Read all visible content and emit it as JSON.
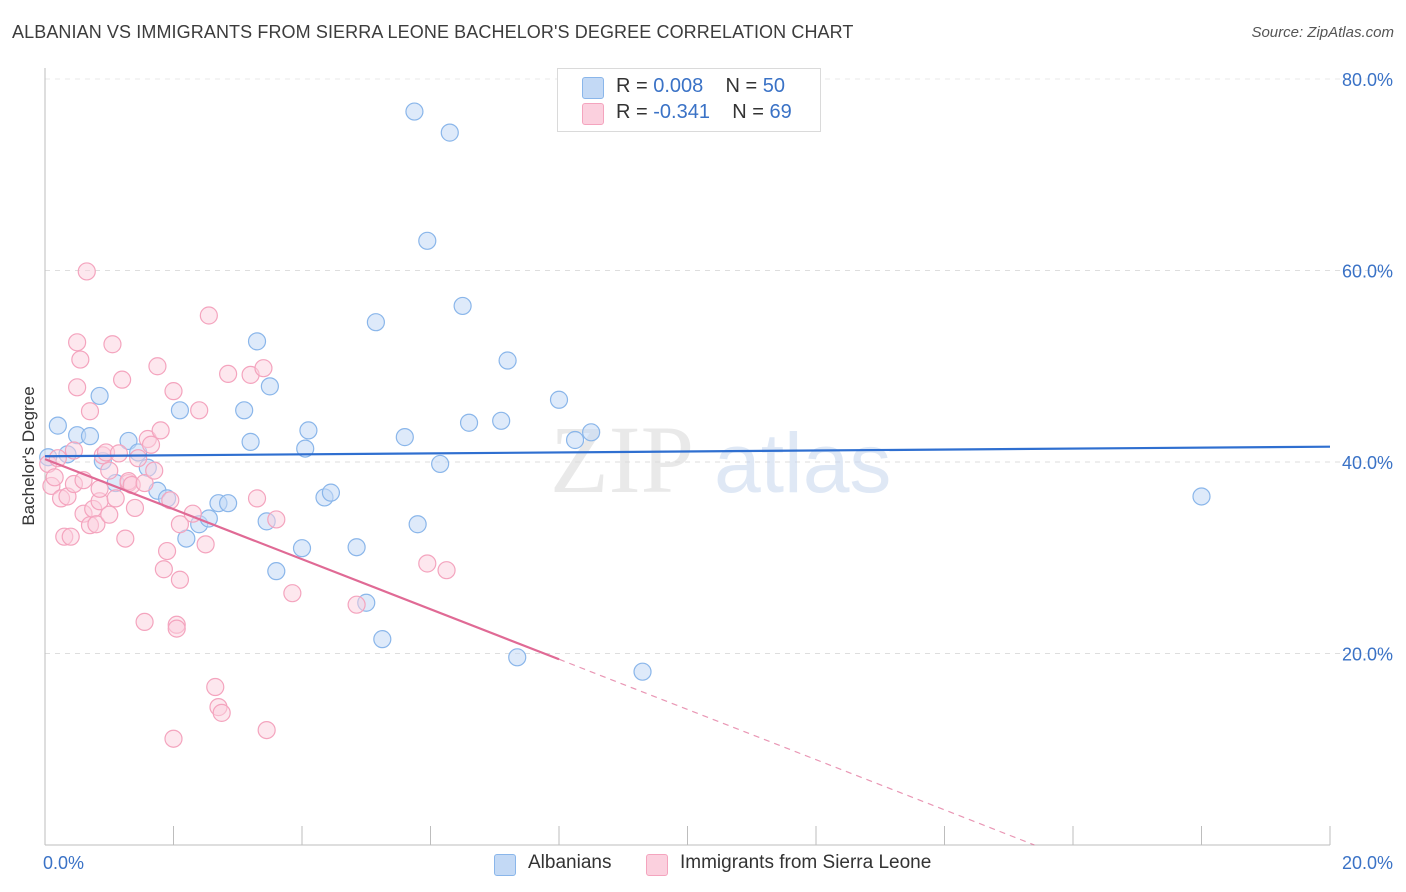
{
  "title": "ALBANIAN VS IMMIGRANTS FROM SIERRA LEONE BACHELOR'S DEGREE CORRELATION CHART",
  "source": "Source: ZipAtlas.com",
  "watermark": {
    "zip": "ZIP",
    "atlas": "atlas"
  },
  "legend": {
    "r_label": "R =",
    "n_label": "N =",
    "rows": [
      {
        "r": "0.008",
        "n": "50"
      },
      {
        "r": "-0.341",
        "n": "69"
      }
    ]
  },
  "bottom_legend": [
    "Albanians",
    "Immigrants from Sierra Leone"
  ],
  "chart_data": {
    "type": "scatter",
    "title": "ALBANIAN VS IMMIGRANTS FROM SIERRA LEONE BACHELOR'S DEGREE CORRELATION CHART",
    "xlabel": "",
    "ylabel": "Bachelor's Degree",
    "xlim": [
      0,
      20
    ],
    "ylim": [
      0,
      80
    ],
    "x_tick_labels": [
      "0.0%",
      "20.0%"
    ],
    "y_ticks": [
      20,
      40,
      60,
      80
    ],
    "y_tick_labels": [
      "20.0%",
      "40.0%",
      "60.0%",
      "80.0%"
    ],
    "grid": true,
    "legend_position": "top-center",
    "series": [
      {
        "name": "Albanians",
        "color": "#8ab6ea",
        "line_color": "#2f6fd0",
        "trend": {
          "x0": 0,
          "y0": 40.6,
          "x1": 20,
          "y1": 41.6,
          "dashed_after": null
        },
        "points": [
          [
            0.05,
            40.5
          ],
          [
            0.2,
            43.8
          ],
          [
            0.35,
            40.8
          ],
          [
            0.5,
            42.8
          ],
          [
            0.7,
            42.7
          ],
          [
            0.85,
            46.9
          ],
          [
            0.9,
            40.1
          ],
          [
            1.1,
            37.8
          ],
          [
            1.3,
            42.2
          ],
          [
            1.45,
            41.0
          ],
          [
            1.6,
            39.4
          ],
          [
            1.75,
            37.0
          ],
          [
            1.9,
            36.2
          ],
          [
            2.1,
            45.4
          ],
          [
            2.2,
            32.0
          ],
          [
            2.4,
            33.5
          ],
          [
            2.55,
            34.1
          ],
          [
            2.7,
            35.7
          ],
          [
            2.85,
            35.7
          ],
          [
            3.1,
            45.4
          ],
          [
            3.2,
            42.1
          ],
          [
            3.3,
            52.6
          ],
          [
            3.45,
            33.8
          ],
          [
            3.5,
            47.9
          ],
          [
            3.6,
            28.6
          ],
          [
            4.0,
            31.0
          ],
          [
            4.05,
            41.4
          ],
          [
            4.1,
            43.3
          ],
          [
            4.35,
            36.3
          ],
          [
            4.45,
            36.8
          ],
          [
            4.85,
            31.1
          ],
          [
            5.0,
            25.3
          ],
          [
            5.15,
            54.6
          ],
          [
            5.25,
            21.5
          ],
          [
            5.6,
            42.6
          ],
          [
            5.8,
            33.5
          ],
          [
            5.75,
            76.6
          ],
          [
            5.95,
            63.1
          ],
          [
            6.15,
            39.8
          ],
          [
            6.3,
            74.4
          ],
          [
            6.5,
            56.3
          ],
          [
            6.6,
            44.1
          ],
          [
            7.1,
            44.3
          ],
          [
            7.2,
            50.6
          ],
          [
            7.35,
            19.6
          ],
          [
            8.0,
            46.5
          ],
          [
            8.25,
            42.3
          ],
          [
            8.5,
            43.1
          ],
          [
            9.3,
            18.1
          ],
          [
            18.0,
            36.4
          ]
        ]
      },
      {
        "name": "Immigrants from Sierra Leone",
        "color": "#f4a4be",
        "line_color": "#e06a95",
        "trend": {
          "x0": 0,
          "y0": 40.3,
          "x1": 8.0,
          "y1": 19.4,
          "dashed_to": {
            "x": 15.4,
            "y": 0
          }
        },
        "points": [
          [
            0.05,
            39.8
          ],
          [
            0.1,
            37.5
          ],
          [
            0.15,
            38.4
          ],
          [
            0.2,
            40.4
          ],
          [
            0.25,
            36.2
          ],
          [
            0.3,
            32.2
          ],
          [
            0.35,
            36.4
          ],
          [
            0.4,
            32.2
          ],
          [
            0.45,
            37.7
          ],
          [
            0.5,
            52.5
          ],
          [
            0.5,
            47.8
          ],
          [
            0.55,
            50.7
          ],
          [
            0.6,
            34.6
          ],
          [
            0.6,
            38.1
          ],
          [
            0.65,
            59.9
          ],
          [
            0.7,
            45.3
          ],
          [
            0.7,
            33.4
          ],
          [
            0.75,
            35.1
          ],
          [
            0.8,
            33.5
          ],
          [
            0.85,
            35.9
          ],
          [
            0.85,
            37.2
          ],
          [
            0.9,
            40.7
          ],
          [
            0.95,
            41.0
          ],
          [
            1.0,
            39.1
          ],
          [
            1.0,
            34.5
          ],
          [
            1.05,
            52.3
          ],
          [
            1.1,
            36.2
          ],
          [
            1.15,
            40.9
          ],
          [
            1.2,
            48.6
          ],
          [
            1.25,
            32.0
          ],
          [
            1.3,
            37.8
          ],
          [
            1.3,
            38.0
          ],
          [
            1.35,
            37.6
          ],
          [
            1.4,
            35.2
          ],
          [
            1.45,
            40.4
          ],
          [
            1.55,
            23.3
          ],
          [
            1.55,
            37.8
          ],
          [
            1.6,
            42.4
          ],
          [
            1.65,
            41.8
          ],
          [
            1.7,
            39.1
          ],
          [
            1.75,
            50.0
          ],
          [
            1.8,
            43.3
          ],
          [
            1.85,
            28.8
          ],
          [
            1.9,
            30.7
          ],
          [
            1.95,
            36.0
          ],
          [
            2.0,
            47.4
          ],
          [
            2.05,
            23.0
          ],
          [
            2.1,
            27.7
          ],
          [
            2.1,
            33.5
          ],
          [
            2.3,
            34.6
          ],
          [
            2.4,
            45.4
          ],
          [
            2.5,
            31.4
          ],
          [
            2.55,
            55.3
          ],
          [
            2.65,
            16.5
          ],
          [
            2.7,
            14.4
          ],
          [
            2.75,
            13.8
          ],
          [
            2.85,
            49.2
          ],
          [
            3.2,
            49.1
          ],
          [
            3.3,
            36.2
          ],
          [
            3.4,
            49.8
          ],
          [
            3.45,
            12.0
          ],
          [
            3.6,
            34.0
          ],
          [
            3.85,
            26.3
          ],
          [
            4.85,
            25.1
          ],
          [
            5.95,
            29.4
          ],
          [
            6.25,
            28.7
          ],
          [
            2.05,
            22.6
          ],
          [
            0.45,
            41.2
          ],
          [
            2.0,
            11.1
          ]
        ]
      }
    ]
  }
}
